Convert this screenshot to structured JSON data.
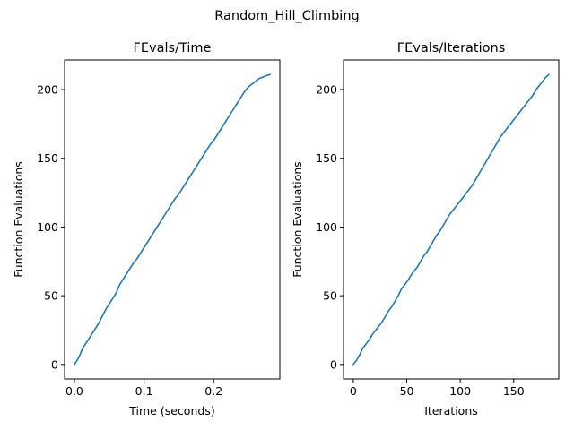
{
  "figure": {
    "suptitle": "Random_Hill_Climbing"
  },
  "style": {
    "line_color": "#1f77b4"
  },
  "chart_data": [
    {
      "type": "line",
      "title": "FEvals/Time",
      "xlabel": "Time (seconds)",
      "ylabel": "Function Evaluations",
      "xlim": [
        -0.0141,
        0.295
      ],
      "ylim": [
        -10.55,
        221.55
      ],
      "xticks": [
        0.0,
        0.1,
        0.2
      ],
      "xtick_labels": [
        "0.0",
        "0.1",
        "0.2"
      ],
      "yticks": [
        0,
        50,
        100,
        150,
        200
      ],
      "ytick_labels": [
        "0",
        "50",
        "100",
        "150",
        "200"
      ],
      "grid": false,
      "series": [
        {
          "x": [
            0.0,
            0.004,
            0.008,
            0.012,
            0.016,
            0.02,
            0.025,
            0.03,
            0.035,
            0.04,
            0.045,
            0.05,
            0.055,
            0.06,
            0.065,
            0.07,
            0.075,
            0.08,
            0.085,
            0.09,
            0.095,
            0.1,
            0.105,
            0.11,
            0.115,
            0.12,
            0.125,
            0.13,
            0.135,
            0.14,
            0.145,
            0.15,
            0.155,
            0.16,
            0.165,
            0.17,
            0.175,
            0.18,
            0.185,
            0.19,
            0.195,
            0.2,
            0.205,
            0.21,
            0.215,
            0.22,
            0.225,
            0.23,
            0.235,
            0.24,
            0.245,
            0.25,
            0.255,
            0.26,
            0.265,
            0.27,
            0.275,
            0.281
          ],
          "y": [
            0,
            3,
            7,
            12,
            15,
            18,
            22,
            26,
            30,
            35,
            40,
            44,
            48,
            52,
            58,
            62,
            66,
            70,
            74,
            77,
            81,
            85,
            89,
            93,
            97,
            101,
            105,
            109,
            113,
            117,
            121,
            124,
            128,
            132,
            136,
            140,
            144,
            148,
            152,
            156,
            160,
            163,
            167,
            171,
            175,
            179,
            183,
            187,
            191,
            195,
            199,
            202,
            204,
            206,
            208,
            209,
            210,
            211
          ]
        }
      ]
    },
    {
      "type": "line",
      "title": "FEvals/Iterations",
      "xlabel": "Iterations",
      "ylabel": "Function Evaluations",
      "xlim": [
        -9.15,
        192.15
      ],
      "ylim": [
        -10.55,
        221.55
      ],
      "xticks": [
        0,
        50,
        100,
        150
      ],
      "xtick_labels": [
        "0",
        "50",
        "100",
        "150"
      ],
      "yticks": [
        0,
        50,
        100,
        150,
        200
      ],
      "ytick_labels": [
        "0",
        "50",
        "100",
        "150",
        "200"
      ],
      "grid": false,
      "series": [
        {
          "x": [
            0,
            3,
            6,
            9,
            12,
            15,
            18,
            21,
            24,
            27,
            30,
            33,
            36,
            39,
            42,
            45,
            48,
            51,
            54,
            57,
            60,
            63,
            66,
            69,
            72,
            75,
            78,
            81,
            84,
            87,
            90,
            93,
            96,
            99,
            102,
            105,
            108,
            111,
            114,
            117,
            120,
            123,
            126,
            129,
            132,
            135,
            138,
            141,
            144,
            147,
            150,
            153,
            156,
            159,
            162,
            165,
            168,
            171,
            174,
            177,
            180,
            183
          ],
          "y": [
            0,
            3,
            7,
            12,
            15,
            18,
            22,
            25,
            28,
            31,
            35,
            39,
            42,
            46,
            50,
            55,
            58,
            61,
            65,
            68,
            71,
            75,
            79,
            82,
            86,
            90,
            94,
            97,
            101,
            105,
            109,
            112,
            115,
            118,
            121,
            124,
            127,
            130,
            134,
            138,
            142,
            146,
            150,
            154,
            158,
            162,
            166,
            169,
            172,
            175,
            178,
            181,
            184,
            187,
            190,
            193,
            196,
            200,
            203,
            206,
            209,
            211
          ]
        }
      ]
    }
  ]
}
